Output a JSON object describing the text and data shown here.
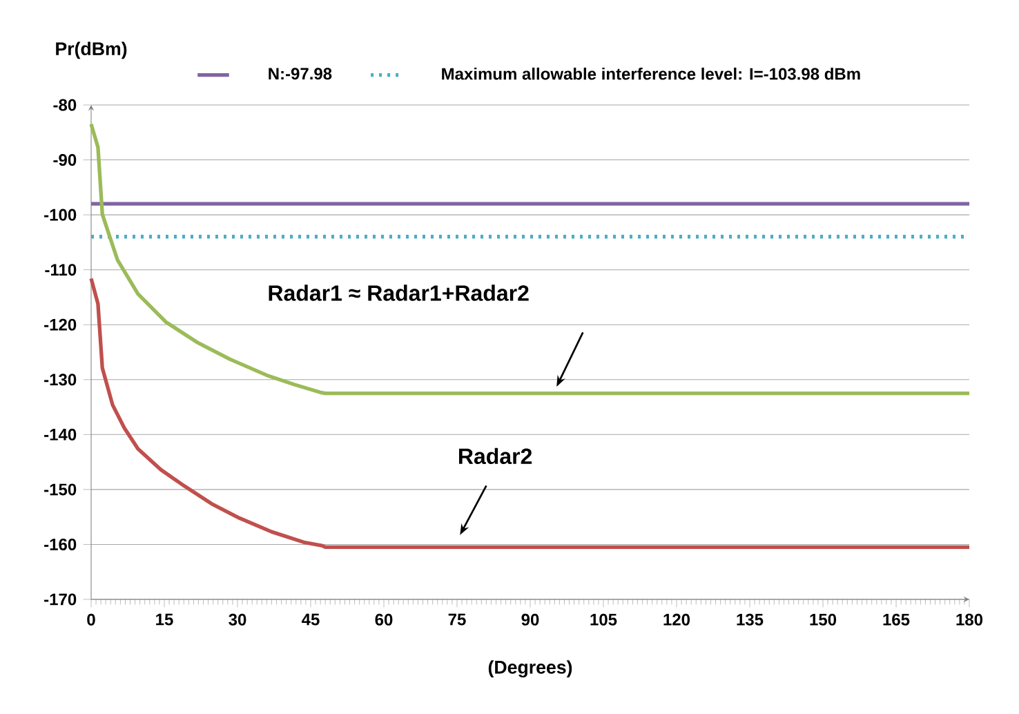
{
  "chart_data": {
    "type": "line",
    "xlabel": "(Degrees)",
    "ylabel": "Pr(dBm)",
    "xlim": [
      0,
      180
    ],
    "xticks": [
      0,
      15,
      30,
      45,
      60,
      75,
      90,
      105,
      120,
      135,
      150,
      165,
      180
    ],
    "ylim": [
      -170,
      -80
    ],
    "yticks": [
      -170,
      -160,
      -150,
      -140,
      -130,
      -120,
      -110,
      -100,
      -90,
      -80
    ],
    "grid": "y",
    "legend": "top",
    "series": [
      {
        "name": "N:-97.98",
        "color": "#8064a2",
        "line_style": "solid",
        "x": [
          0,
          180
        ],
        "values": [
          -97.98,
          -97.98
        ]
      },
      {
        "name": "Maximum allowable interference level: I=-103.98 dBm",
        "color": "#4bacc6",
        "line_style": "dotted",
        "x": [
          0,
          180
        ],
        "values": [
          -103.98,
          -103.98
        ]
      },
      {
        "color": "#9bbb59",
        "line_style": "solid",
        "x": [
          0,
          1.4,
          2.3,
          5.4,
          9.6,
          15.3,
          21.9,
          28.5,
          36,
          41.7,
          46.9,
          48,
          180
        ],
        "values": [
          -83.5,
          -87.7,
          -99.9,
          -108.2,
          -114.4,
          -119.5,
          -123.3,
          -126.3,
          -129.2,
          -130.9,
          -132.3,
          -132.5,
          -132.5
        ]
      },
      {
        "color": "#c0504d",
        "line_style": "solid",
        "x": [
          0,
          1.4,
          2.3,
          4.4,
          6.8,
          9.6,
          14.3,
          19,
          24.7,
          30.4,
          37,
          43.6,
          47.3,
          48,
          180
        ],
        "values": [
          -111.6,
          -116.2,
          -127.9,
          -134.6,
          -138.8,
          -142.6,
          -146.4,
          -149.3,
          -152.6,
          -155.2,
          -157.7,
          -159.6,
          -160.2,
          -160.5,
          -160.5
        ]
      }
    ],
    "annotations": [
      "Radar1 ≈ Radar1+Radar2",
      "Radar2"
    ]
  }
}
